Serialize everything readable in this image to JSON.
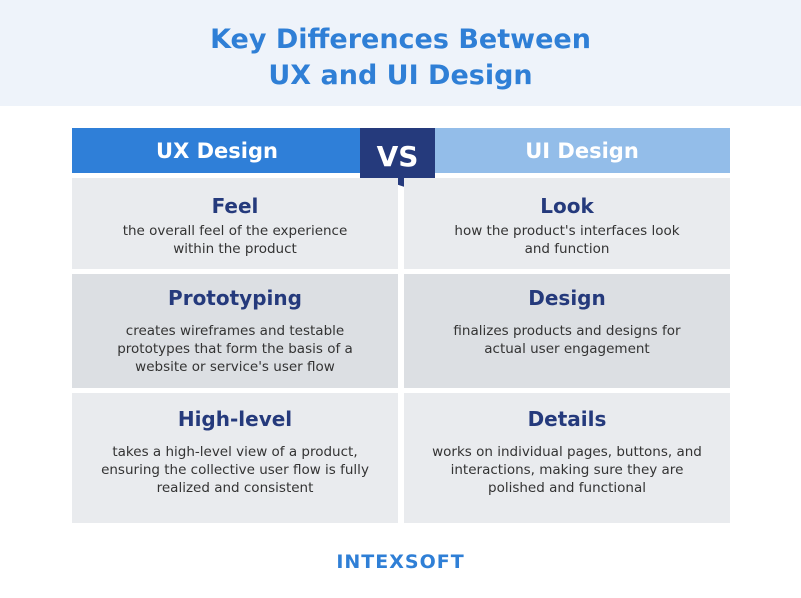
{
  "title_line1": "Key Differences Between",
  "title_line2": "UX and UI Design",
  "left_header": "UX Design",
  "right_header": "UI Design",
  "vs_label": "VS",
  "rows": [
    {
      "left": {
        "heading": "Feel",
        "text": "the overall feel of the experience within the product"
      },
      "right": {
        "heading": "Look",
        "text": "how the product's interfaces look and function"
      }
    },
    {
      "left": {
        "heading": "Prototyping",
        "text": "creates wireframes and testable prototypes that form the basis of a website or service's user flow"
      },
      "right": {
        "heading": "Design",
        "text": "finalizes products and designs for actual user engagement"
      }
    },
    {
      "left": {
        "heading": "High-level",
        "text": "takes a high-level view of a product, ensuring the collective user flow is fully realized and consistent"
      },
      "right": {
        "heading": "Details",
        "text": "works on individual pages, buttons, and interactions, making sure they are polished and functional"
      }
    }
  ],
  "logo": "INTEXSOFT",
  "colors": {
    "title": "#2f7fd6",
    "ux": "#2f7fd8",
    "ui": "#93bde9",
    "vs": "#253a7c"
  }
}
